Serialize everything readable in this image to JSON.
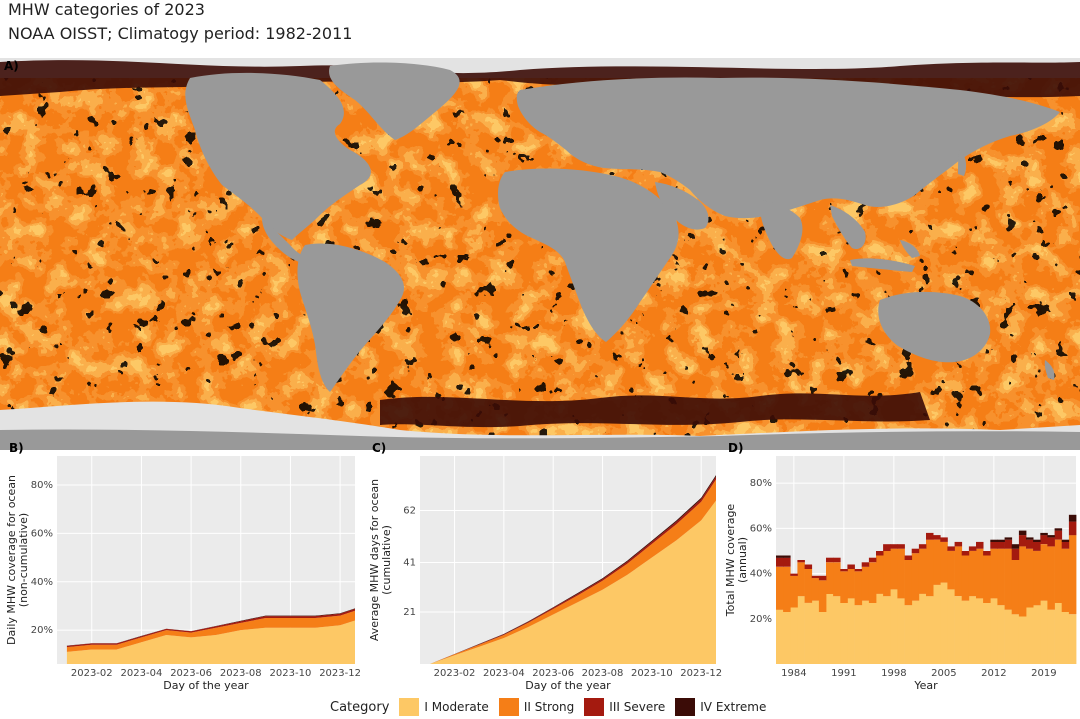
{
  "title": "MHW categories of 2023",
  "subtitle": "NOAA OISST; Climatogy period: 1982-2011",
  "colors": {
    "moderate": "#fdc865",
    "strong": "#f57e17",
    "severe": "#a41a0f",
    "extreme": "#3b0c07",
    "land": "#999999",
    "ice": "#e3e3e3",
    "ocean_none": "#fff3d4",
    "panel_bg": "#ebebeb"
  },
  "legend": {
    "title": "Category",
    "items": [
      {
        "label": "I Moderate",
        "color": "#fdc865"
      },
      {
        "label": "II Strong",
        "color": "#f57e17"
      },
      {
        "label": "III Severe",
        "color": "#a41a0f"
      },
      {
        "label": "IV Extreme",
        "color": "#3b0c07"
      }
    ]
  },
  "chart_data": [
    {
      "panel": "A)",
      "type": "heatmap",
      "description_visible": "global map of MHW category per ocean grid cell for 2023"
    },
    {
      "panel": "B)",
      "type": "area",
      "xlabel": "Day of the year",
      "ylabel": "Daily MHW coverage for ocean\n(non-cumulative)",
      "x_ticks": [
        "2023-02",
        "2023-04",
        "2023-06",
        "2023-08",
        "2023-10",
        "2023-12"
      ],
      "y_ticks": [
        "20%",
        "40%",
        "60%",
        "80%"
      ],
      "y_tick_values": [
        20,
        40,
        60,
        80
      ],
      "ylim": [
        6,
        92
      ],
      "x_months": [
        1,
        2,
        3,
        4,
        5,
        6,
        7,
        8,
        9,
        10,
        11,
        12,
        13
      ],
      "series": [
        {
          "name": "I Moderate",
          "values": [
            11,
            12,
            12,
            15,
            18,
            17,
            18,
            20,
            21,
            21,
            21,
            22,
            24
          ]
        },
        {
          "name": "II Strong",
          "values": [
            2,
            2,
            2,
            2,
            2,
            2,
            3,
            3,
            4,
            4,
            4,
            4,
            4
          ]
        },
        {
          "name": "III Severe",
          "values": [
            0.5,
            0.5,
            0.5,
            0.5,
            0.5,
            0.5,
            0.6,
            0.7,
            0.8,
            0.8,
            0.8,
            0.8,
            0.8
          ]
        },
        {
          "name": "IV Extreme",
          "values": [
            0.1,
            0.1,
            0.1,
            0.1,
            0.1,
            0.1,
            0.1,
            0.2,
            0.2,
            0.2,
            0.2,
            0.2,
            0.2
          ]
        }
      ]
    },
    {
      "panel": "C)",
      "type": "area",
      "xlabel": "Day of the year",
      "ylabel": "Average MHW days for ocean\n(cumulative)",
      "x_ticks": [
        "2023-02",
        "2023-04",
        "2023-06",
        "2023-08",
        "2023-10",
        "2023-12"
      ],
      "y_ticks": [
        "21",
        "41",
        "62"
      ],
      "y_tick_values": [
        21,
        41,
        62
      ],
      "ylim": [
        0,
        84
      ],
      "x_months": [
        1,
        2,
        3,
        4,
        5,
        6,
        7,
        8,
        9,
        10,
        11,
        12,
        13
      ],
      "series": [
        {
          "name": "I Moderate",
          "values": [
            0,
            3.5,
            7,
            10.5,
            15,
            20,
            25,
            30,
            36,
            43,
            50,
            58,
            66
          ]
        },
        {
          "name": "II Strong",
          "values": [
            0,
            0.4,
            0.8,
            1.2,
            1.7,
            2.2,
            2.8,
            3.6,
            4.5,
            5.5,
            6.5,
            7.5,
            8.5
          ]
        },
        {
          "name": "III Severe",
          "values": [
            0,
            0.1,
            0.2,
            0.3,
            0.4,
            0.5,
            0.6,
            0.7,
            0.8,
            0.9,
            1.0,
            1.1,
            1.2
          ]
        },
        {
          "name": "IV Extreme",
          "values": [
            0,
            0.05,
            0.1,
            0.15,
            0.2,
            0.25,
            0.3,
            0.35,
            0.4,
            0.45,
            0.5,
            0.55,
            0.6
          ]
        }
      ]
    },
    {
      "panel": "D)",
      "type": "bar",
      "xlabel": "Year",
      "ylabel": "Total MHW coverage\n(annual)",
      "x_ticks": [
        "1984",
        "1991",
        "1998",
        "2005",
        "2012",
        "2019"
      ],
      "y_ticks": [
        "20%",
        "40%",
        "60%",
        "80%"
      ],
      "y_tick_values": [
        20,
        40,
        60,
        80
      ],
      "ylim": [
        0,
        92
      ],
      "categories": [
        1982,
        1983,
        1984,
        1985,
        1986,
        1987,
        1988,
        1989,
        1990,
        1991,
        1992,
        1993,
        1994,
        1995,
        1996,
        1997,
        1998,
        1999,
        2000,
        2001,
        2002,
        2003,
        2004,
        2005,
        2006,
        2007,
        2008,
        2009,
        2010,
        2011,
        2012,
        2013,
        2014,
        2015,
        2016,
        2017,
        2018,
        2019,
        2020,
        2021,
        2022,
        2023
      ],
      "series": [
        {
          "name": "I Moderate",
          "values": [
            24,
            23,
            25,
            30,
            27,
            28,
            23,
            31,
            30,
            27,
            29,
            26,
            28,
            27,
            31,
            30,
            33,
            29,
            26,
            28,
            31,
            30,
            35,
            36,
            33,
            30,
            28,
            30,
            29,
            27,
            29,
            26,
            24,
            22,
            21,
            25,
            26,
            28,
            24,
            27,
            23,
            22
          ]
        },
        {
          "name": "II Strong",
          "values": [
            19,
            20,
            14,
            15,
            15,
            10,
            14,
            14,
            15,
            14,
            13,
            15,
            15,
            18,
            17,
            20,
            18,
            22,
            20,
            21,
            20,
            25,
            20,
            18,
            17,
            22,
            20,
            20,
            22,
            21,
            22,
            25,
            27,
            24,
            31,
            26,
            24,
            25,
            28,
            28,
            28,
            35
          ]
        },
        {
          "name": "III Severe",
          "values": [
            4,
            4,
            1,
            1,
            2,
            1,
            2,
            2,
            2,
            1,
            2,
            1,
            2,
            2,
            2,
            3,
            2,
            2,
            2,
            2,
            2,
            3,
            2,
            2,
            2,
            2,
            2,
            2,
            3,
            2,
            3,
            3,
            4,
            5,
            5,
            4,
            4,
            4,
            4,
            4,
            3,
            6
          ]
        },
        {
          "name": "IV Extreme",
          "values": [
            1,
            1,
            0,
            0,
            0,
            0,
            0,
            0,
            0,
            0,
            0,
            0,
            0,
            0,
            0,
            0,
            0,
            0,
            0,
            0,
            0,
            0,
            0,
            0,
            0,
            0,
            0,
            0,
            0,
            0,
            1,
            1,
            1,
            2,
            2,
            1,
            1,
            1,
            1,
            1,
            1,
            3
          ]
        }
      ]
    }
  ]
}
